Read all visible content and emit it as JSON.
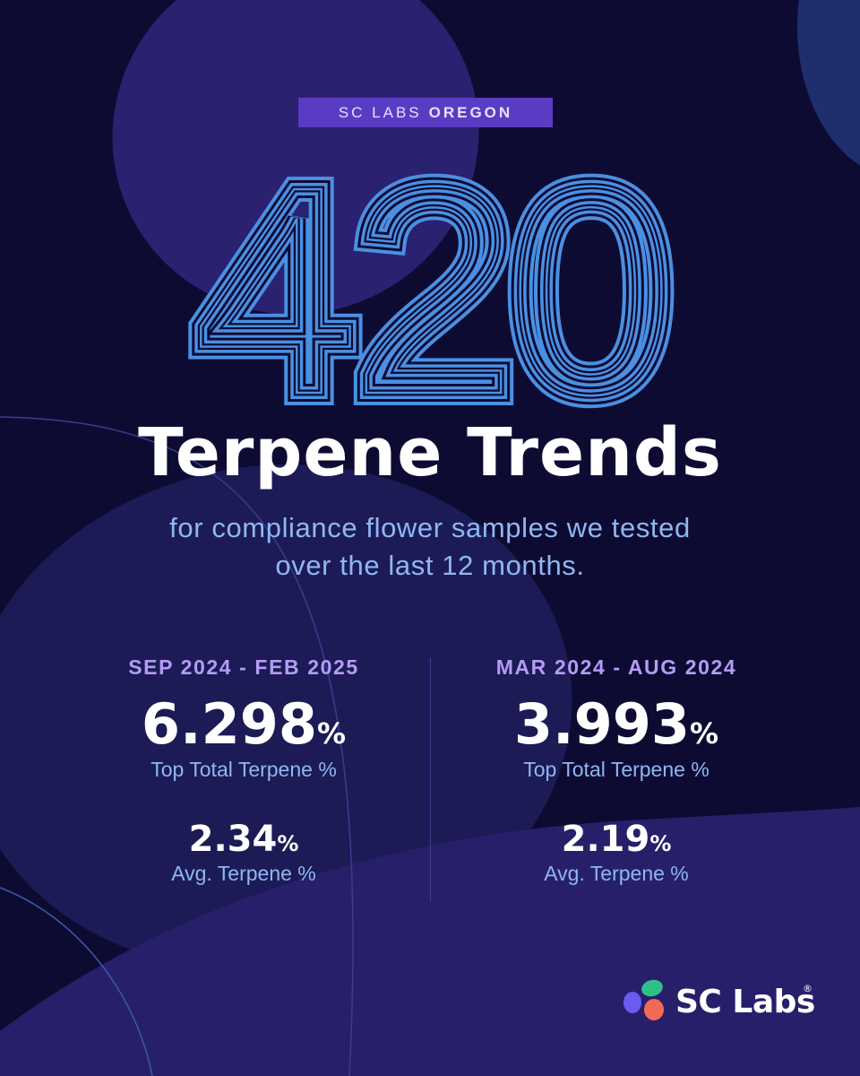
{
  "header": {
    "badge_prefix": "SC LABS",
    "badge_region": "OREGON",
    "big_number": "420",
    "title": "Terpene Trends",
    "subtitle_line1": "for compliance flower samples we tested",
    "subtitle_line2": "over the last 12 months."
  },
  "stats": [
    {
      "period": "SEP 2024 - FEB 2025",
      "top_value": "6.298",
      "top_unit": "%",
      "top_label": "Top Total Terpene %",
      "avg_value": "2.34",
      "avg_unit": "%",
      "avg_label": "Avg. Terpene %"
    },
    {
      "period": "MAR 2024 - AUG 2024",
      "top_value": "3.993",
      "top_unit": "%",
      "top_label": "Top Total Terpene %",
      "avg_value": "2.19",
      "avg_unit": "%",
      "avg_label": "Avg. Terpene %"
    }
  ],
  "logo": {
    "name": "SC Labs",
    "registered": "®",
    "icon": "sc-labs-logo-mark"
  },
  "colors": {
    "background": "#0e0b33",
    "accent_blue": "#4a90e2",
    "badge": "#5a3cc4",
    "period_text": "#b49cf5",
    "label_text": "#8fb7f2"
  }
}
